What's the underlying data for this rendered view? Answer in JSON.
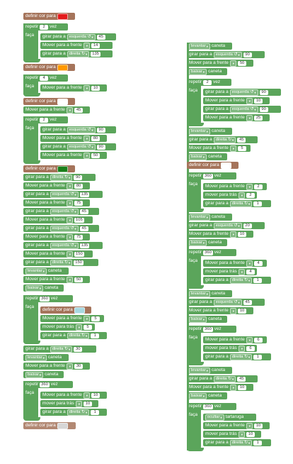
{
  "labels": {
    "define_color": "definir cor para",
    "repeat": "repetir",
    "times": "vez",
    "do": "faça",
    "turn": "girar para a",
    "move_forward": "Mover para a frente",
    "move_back": "mover para trás",
    "lift": "levantar",
    "lower": "baixar",
    "pen": "caneta",
    "hide": "ocultar",
    "turtle": "tartaruga"
  },
  "directions": {
    "left": "esquerda ↺",
    "right": "direita ↻"
  },
  "colors": {
    "red": "#e31b1b",
    "orange": "#ff9800",
    "white": "#ffffff",
    "green": "#1a7f1a",
    "pale_cyan": "#a8d8e0",
    "light_gray": "#d0cfcf",
    "stack_green": "#5ba55b",
    "stack_brown": "#a5745b"
  },
  "values": {
    "n2": "2",
    "n4": "4",
    "n5": "5",
    "n6": "6",
    "n10": "10",
    "n14": "14",
    "n20": "20",
    "n25": "25",
    "n30": "30",
    "n45": "45",
    "n50": "50",
    "n75": "75",
    "n80": "80",
    "n90": "90",
    "n105": "105",
    "n135": "135",
    "n150": "150",
    "n360": "360",
    "n1": "1"
  }
}
